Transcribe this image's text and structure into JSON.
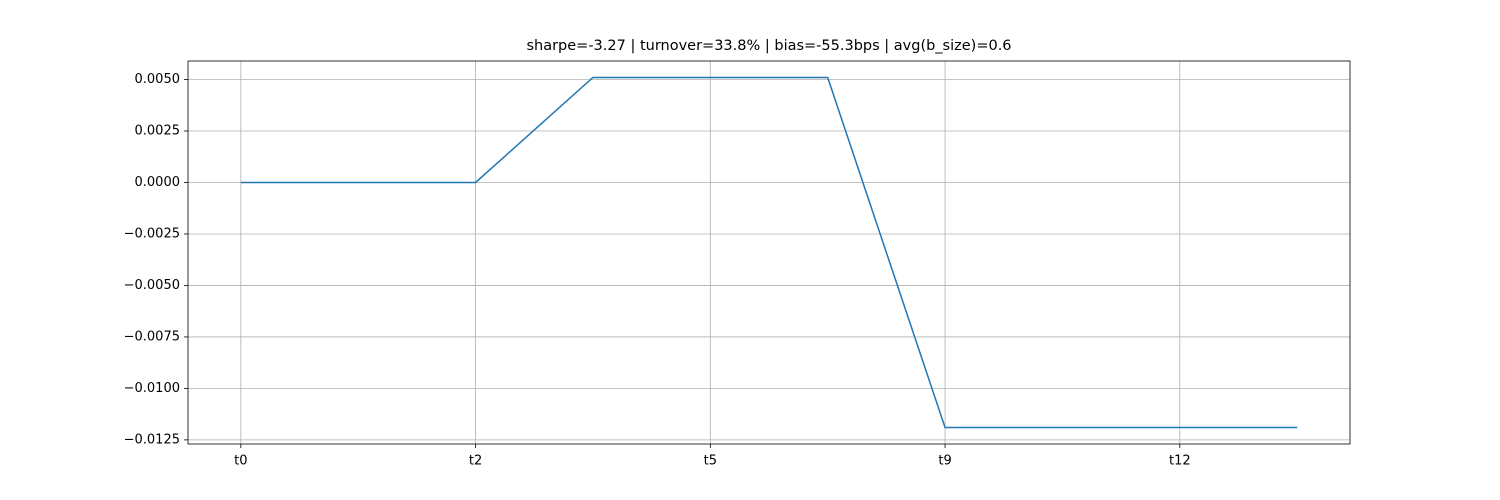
{
  "chart_data": {
    "type": "line",
    "title": "sharpe=-3.27 | turnover=33.8% | bias=-55.3bps | avg(b_size)=0.6",
    "categories": [
      "t0",
      null,
      "t2",
      null,
      "t5",
      null,
      "t9",
      null,
      "t12",
      null
    ],
    "series": [
      {
        "color": "#1f77b4",
        "values": [
          0,
          0,
          0,
          0.0051,
          0.0051,
          0.0051,
          -0.0119,
          -0.0119,
          -0.0119,
          -0.0119
        ]
      }
    ],
    "ylim": [
      -0.0127,
      0.0059
    ],
    "yticks": [
      {
        "value": 0.005,
        "label": "0.0050"
      },
      {
        "value": 0.0025,
        "label": "0.0025"
      },
      {
        "value": 0,
        "label": "0.0000"
      },
      {
        "value": -0.0025,
        "label": "−0.0025"
      },
      {
        "value": -0.005,
        "label": "−0.0050"
      },
      {
        "value": -0.0075,
        "label": "−0.0075"
      },
      {
        "value": -0.01,
        "label": "−0.0100"
      },
      {
        "value": -0.0125,
        "label": "−0.0125"
      }
    ],
    "grid": true
  }
}
